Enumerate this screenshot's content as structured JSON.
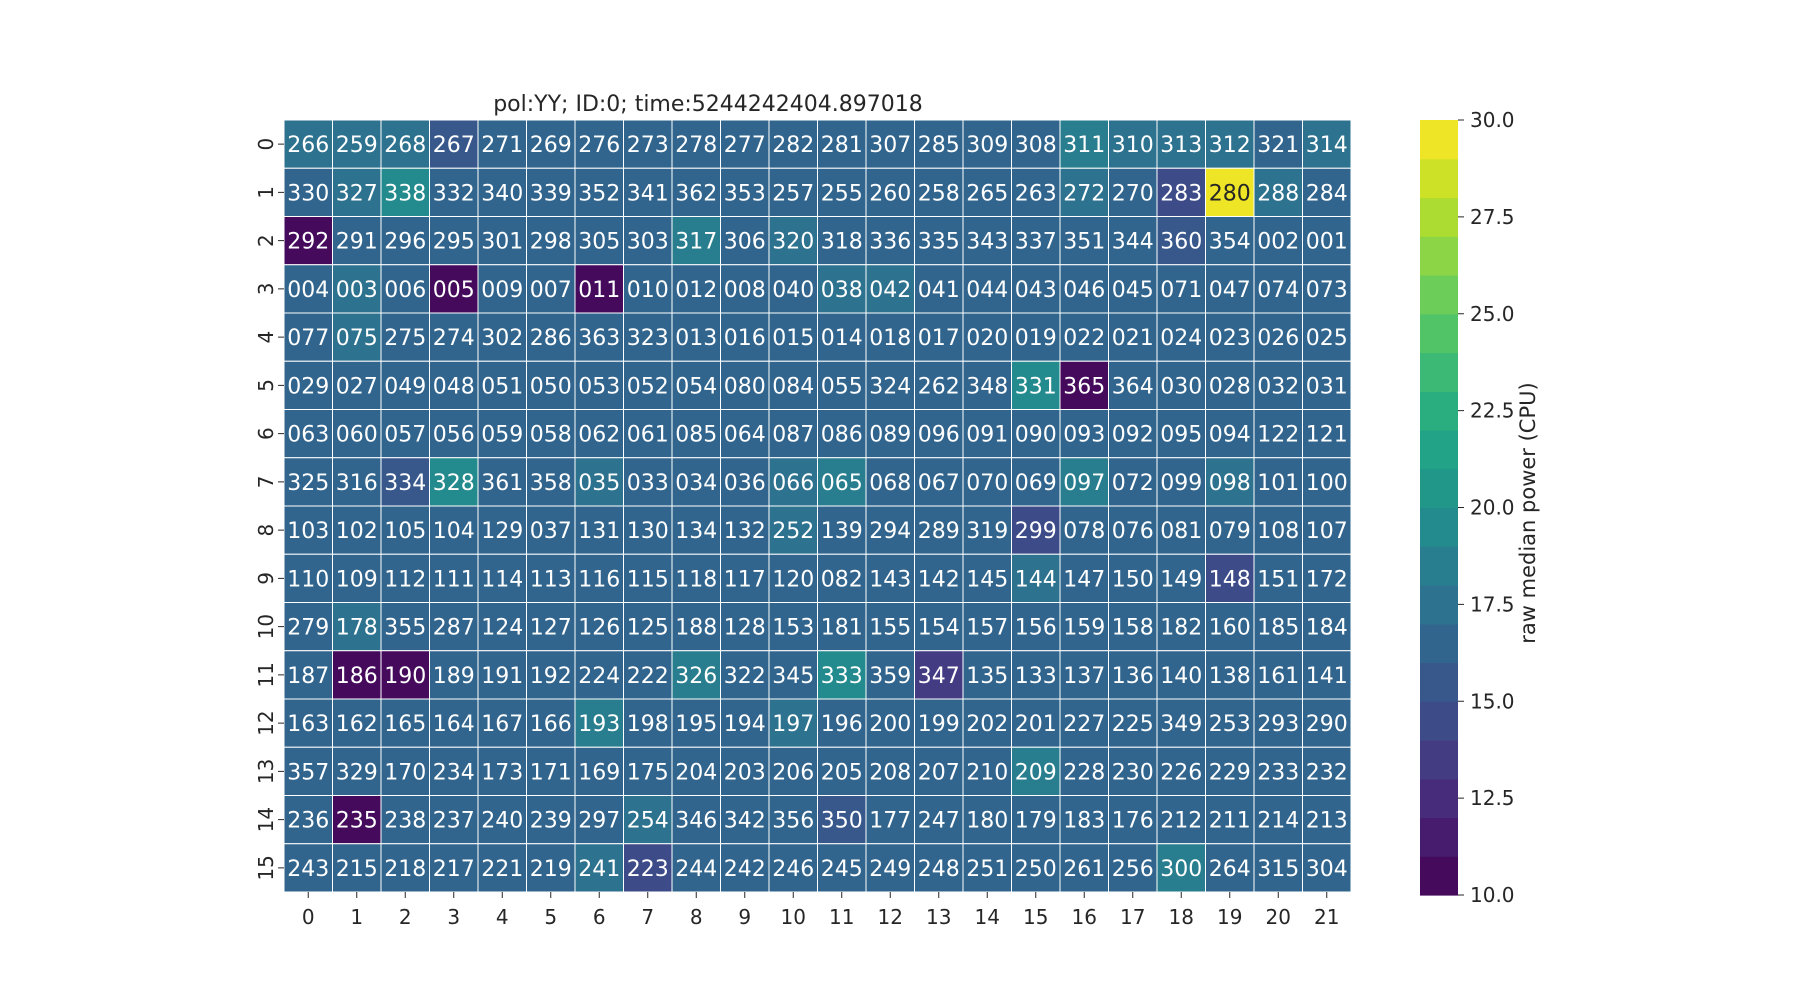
{
  "chart_data": {
    "type": "heatmap",
    "title": "pol:YY; ID:0; time:5244242404.897018",
    "xlabel": "",
    "ylabel": "",
    "x_ticks": [
      "0",
      "1",
      "2",
      "3",
      "4",
      "5",
      "6",
      "7",
      "8",
      "9",
      "10",
      "11",
      "12",
      "13",
      "14",
      "15",
      "16",
      "17",
      "18",
      "19",
      "20",
      "21"
    ],
    "y_ticks": [
      "0",
      "1",
      "2",
      "3",
      "4",
      "5",
      "6",
      "7",
      "8",
      "9",
      "10",
      "11",
      "12",
      "13",
      "14",
      "15"
    ],
    "colorbar": {
      "label": "raw median power (CPU)",
      "range": [
        10.0,
        30.0
      ],
      "ticks": [
        "10.0",
        "12.5",
        "15.0",
        "17.5",
        "20.0",
        "22.5",
        "25.0",
        "27.5",
        "30.0"
      ],
      "colormap": "viridis",
      "levels": 20
    },
    "cell_labels": [
      [
        "266",
        "259",
        "268",
        "267",
        "271",
        "269",
        "276",
        "273",
        "278",
        "277",
        "282",
        "281",
        "307",
        "285",
        "309",
        "308",
        "311",
        "310",
        "313",
        "312",
        "321",
        "314"
      ],
      [
        "330",
        "327",
        "338",
        "332",
        "340",
        "339",
        "352",
        "341",
        "362",
        "353",
        "257",
        "255",
        "260",
        "258",
        "265",
        "263",
        "272",
        "270",
        "283",
        "280",
        "288",
        "284"
      ],
      [
        "292",
        "291",
        "296",
        "295",
        "301",
        "298",
        "305",
        "303",
        "317",
        "306",
        "320",
        "318",
        "336",
        "335",
        "343",
        "337",
        "351",
        "344",
        "360",
        "354",
        "002",
        "001"
      ],
      [
        "004",
        "003",
        "006",
        "005",
        "009",
        "007",
        "011",
        "010",
        "012",
        "008",
        "040",
        "038",
        "042",
        "041",
        "044",
        "043",
        "046",
        "045",
        "071",
        "047",
        "074",
        "073"
      ],
      [
        "077",
        "075",
        "275",
        "274",
        "302",
        "286",
        "363",
        "323",
        "013",
        "016",
        "015",
        "014",
        "018",
        "017",
        "020",
        "019",
        "022",
        "021",
        "024",
        "023",
        "026",
        "025"
      ],
      [
        "029",
        "027",
        "049",
        "048",
        "051",
        "050",
        "053",
        "052",
        "054",
        "080",
        "084",
        "055",
        "324",
        "262",
        "348",
        "331",
        "365",
        "364",
        "030",
        "028",
        "032",
        "031"
      ],
      [
        "063",
        "060",
        "057",
        "056",
        "059",
        "058",
        "062",
        "061",
        "085",
        "064",
        "087",
        "086",
        "089",
        "096",
        "091",
        "090",
        "093",
        "092",
        "095",
        "094",
        "122",
        "121"
      ],
      [
        "325",
        "316",
        "334",
        "328",
        "361",
        "358",
        "035",
        "033",
        "034",
        "036",
        "066",
        "065",
        "068",
        "067",
        "070",
        "069",
        "097",
        "072",
        "099",
        "098",
        "101",
        "100"
      ],
      [
        "103",
        "102",
        "105",
        "104",
        "129",
        "037",
        "131",
        "130",
        "134",
        "132",
        "252",
        "139",
        "294",
        "289",
        "319",
        "299",
        "078",
        "076",
        "081",
        "079",
        "108",
        "107"
      ],
      [
        "110",
        "109",
        "112",
        "111",
        "114",
        "113",
        "116",
        "115",
        "118",
        "117",
        "120",
        "082",
        "143",
        "142",
        "145",
        "144",
        "147",
        "150",
        "149",
        "148",
        "151",
        "172"
      ],
      [
        "279",
        "178",
        "355",
        "287",
        "124",
        "127",
        "126",
        "125",
        "188",
        "128",
        "153",
        "181",
        "155",
        "154",
        "157",
        "156",
        "159",
        "158",
        "182",
        "160",
        "185",
        "184"
      ],
      [
        "187",
        "186",
        "190",
        "189",
        "191",
        "192",
        "224",
        "222",
        "326",
        "322",
        "345",
        "333",
        "359",
        "347",
        "135",
        "133",
        "137",
        "136",
        "140",
        "138",
        "161",
        "141"
      ],
      [
        "163",
        "162",
        "165",
        "164",
        "167",
        "166",
        "193",
        "198",
        "195",
        "194",
        "197",
        "196",
        "200",
        "199",
        "202",
        "201",
        "227",
        "225",
        "349",
        "253",
        "293",
        "290"
      ],
      [
        "357",
        "329",
        "170",
        "234",
        "173",
        "171",
        "169",
        "175",
        "204",
        "203",
        "206",
        "205",
        "208",
        "207",
        "210",
        "209",
        "228",
        "230",
        "226",
        "229",
        "233",
        "232"
      ],
      [
        "236",
        "235",
        "238",
        "237",
        "240",
        "239",
        "297",
        "254",
        "346",
        "342",
        "356",
        "350",
        "177",
        "247",
        "180",
        "179",
        "183",
        "176",
        "212",
        "211",
        "214",
        "213"
      ],
      [
        "243",
        "215",
        "218",
        "217",
        "221",
        "219",
        "241",
        "223",
        "244",
        "242",
        "246",
        "245",
        "249",
        "248",
        "251",
        "250",
        "261",
        "256",
        "300",
        "264",
        "315",
        "304"
      ]
    ],
    "values": [
      [
        17.2,
        17.3,
        17.1,
        15.6,
        16.4,
        16.5,
        16.7,
        16.8,
        16.6,
        16.9,
        16.6,
        16.5,
        16.2,
        16.0,
        16.0,
        16.4,
        18.5,
        17.7,
        17.5,
        17.4,
        16.9,
        17.4
      ],
      [
        16.6,
        17.2,
        19.5,
        16.4,
        16.4,
        16.3,
        16.5,
        16.0,
        16.6,
        16.1,
        16.7,
        16.5,
        16.6,
        16.4,
        16.9,
        16.4,
        17.1,
        16.7,
        14.4,
        29.7,
        17.2,
        16.8
      ],
      [
        10.2,
        16.4,
        16.4,
        16.6,
        16.8,
        16.6,
        16.4,
        16.6,
        18.8,
        16.6,
        17.1,
        16.7,
        16.6,
        16.5,
        16.6,
        16.6,
        16.7,
        16.7,
        15.0,
        16.5,
        16.9,
        16.6
      ],
      [
        16.7,
        17.0,
        16.8,
        10.4,
        16.8,
        16.8,
        10.6,
        16.7,
        16.8,
        16.7,
        16.9,
        17.1,
        17.4,
        16.6,
        16.7,
        16.8,
        16.8,
        16.6,
        16.9,
        16.5,
        16.6,
        16.8
      ],
      [
        16.5,
        17.2,
        16.3,
        16.7,
        16.5,
        16.8,
        16.7,
        16.8,
        16.7,
        16.8,
        16.9,
        16.7,
        16.8,
        16.8,
        16.7,
        16.7,
        16.8,
        16.8,
        16.6,
        16.6,
        16.8,
        16.6
      ],
      [
        16.6,
        16.9,
        16.6,
        16.9,
        16.8,
        16.8,
        16.8,
        16.4,
        16.5,
        16.8,
        16.7,
        16.8,
        16.9,
        16.6,
        16.4,
        19.2,
        10.3,
        16.2,
        16.5,
        16.5,
        16.7,
        16.8
      ],
      [
        16.5,
        16.8,
        16.8,
        16.8,
        16.8,
        16.8,
        16.5,
        16.8,
        16.7,
        16.5,
        16.7,
        16.6,
        16.5,
        16.8,
        16.8,
        16.7,
        16.8,
        16.5,
        16.3,
        16.7,
        16.4,
        16.7
      ],
      [
        16.5,
        16.3,
        15.0,
        19.0,
        16.4,
        16.5,
        17.8,
        16.7,
        16.5,
        16.5,
        17.8,
        18.2,
        16.9,
        16.5,
        16.6,
        16.5,
        18.7,
        16.6,
        16.6,
        17.3,
        16.5,
        16.8
      ],
      [
        16.5,
        16.4,
        16.8,
        16.3,
        16.7,
        16.6,
        16.4,
        16.4,
        16.7,
        16.5,
        17.2,
        16.6,
        16.6,
        16.6,
        16.4,
        14.5,
        16.4,
        16.5,
        16.3,
        16.7,
        16.7,
        16.5
      ],
      [
        16.6,
        16.6,
        16.5,
        16.4,
        16.6,
        16.8,
        16.5,
        16.4,
        16.9,
        16.5,
        16.6,
        16.8,
        16.6,
        16.8,
        16.7,
        17.8,
        16.5,
        16.7,
        16.9,
        14.0,
        16.6,
        16.6
      ],
      [
        16.6,
        17.8,
        16.4,
        16.6,
        16.5,
        16.8,
        16.5,
        16.6,
        16.6,
        16.6,
        16.6,
        16.7,
        16.5,
        16.4,
        16.4,
        16.6,
        16.6,
        16.8,
        16.6,
        16.5,
        16.6,
        16.6
      ],
      [
        16.6,
        10.2,
        10.2,
        16.5,
        16.4,
        16.6,
        16.6,
        16.8,
        18.0,
        16.7,
        16.6,
        19.0,
        16.5,
        13.8,
        16.4,
        16.6,
        16.6,
        16.5,
        16.8,
        16.7,
        16.5,
        16.7
      ],
      [
        16.4,
        16.6,
        16.7,
        16.6,
        16.5,
        16.4,
        18.8,
        16.7,
        16.5,
        16.6,
        17.4,
        16.9,
        16.5,
        16.6,
        16.6,
        16.6,
        16.5,
        16.4,
        16.5,
        16.7,
        16.5,
        16.6
      ],
      [
        16.4,
        16.4,
        16.6,
        16.6,
        16.5,
        16.4,
        16.8,
        16.8,
        16.5,
        16.5,
        16.6,
        16.8,
        16.5,
        16.6,
        16.5,
        18.3,
        16.7,
        16.6,
        16.6,
        16.6,
        16.4,
        16.6
      ],
      [
        16.6,
        10.1,
        16.6,
        16.4,
        16.5,
        16.6,
        16.6,
        17.4,
        16.7,
        16.6,
        16.6,
        15.4,
        16.6,
        16.4,
        16.6,
        16.6,
        16.5,
        16.4,
        16.7,
        16.6,
        16.7,
        16.7
      ],
      [
        16.6,
        16.6,
        16.6,
        16.6,
        16.5,
        16.5,
        17.3,
        14.3,
        16.5,
        16.5,
        16.8,
        16.6,
        16.6,
        16.5,
        16.6,
        16.6,
        16.8,
        16.6,
        18.0,
        16.7,
        16.8,
        16.6
      ]
    ]
  }
}
